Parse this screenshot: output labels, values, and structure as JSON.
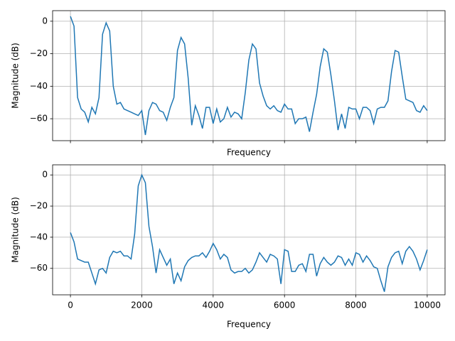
{
  "chart_data": [
    {
      "type": "line",
      "xlabel": "Frequency",
      "ylabel": "Magnitude (dB)",
      "x": [
        0,
        100,
        200,
        300,
        400,
        500,
        600,
        700,
        800,
        900,
        1000,
        1100,
        1200,
        1300,
        1400,
        1500,
        1600,
        1700,
        1800,
        1900,
        2000,
        2100,
        2200,
        2300,
        2400,
        2500,
        2600,
        2700,
        2800,
        2900,
        3000,
        3100,
        3200,
        3300,
        3400,
        3500,
        3600,
        3700,
        3800,
        3900,
        4000,
        4100,
        4200,
        4300,
        4400,
        4500,
        4600,
        4700,
        4800,
        4900,
        5000,
        5100,
        5200,
        5300,
        5400,
        5500,
        5600,
        5700,
        5800,
        5900,
        6000,
        6100,
        6200,
        6300,
        6400,
        6500,
        6600,
        6700,
        6800,
        6900,
        7000,
        7100,
        7200,
        7300,
        7400,
        7500,
        7600,
        7700,
        7800,
        7900,
        8000,
        8100,
        8200,
        8300,
        8400,
        8500,
        8600,
        8700,
        8800,
        8900,
        9000,
        9100,
        9200,
        9300,
        9400,
        9500,
        9600,
        9700,
        9800,
        9900,
        10000
      ],
      "series": [
        {
          "color": "#1f77b4",
          "values": [
            3,
            -3,
            -47,
            -54,
            -56,
            -62,
            -53,
            -57,
            -47,
            -8,
            -1,
            -6,
            -40,
            -51,
            -50,
            -54,
            -55,
            -56,
            -57,
            -58,
            -55,
            -70,
            -55,
            -50,
            -51,
            -55,
            -56,
            -61,
            -53,
            -47,
            -18,
            -10,
            -14,
            -35,
            -64,
            -52,
            -58,
            -66,
            -53,
            -53,
            -63,
            -54,
            -62,
            -60,
            -53,
            -59,
            -56,
            -57,
            -60,
            -44,
            -24,
            -14,
            -17,
            -38,
            -46,
            -52,
            -54,
            -52,
            -55,
            -56,
            -51,
            -54,
            -54,
            -63,
            -60,
            -60,
            -59,
            -68,
            -56,
            -45,
            -28,
            -17,
            -19,
            -33,
            -49,
            -67,
            -57,
            -66,
            -53,
            -54,
            -54,
            -60,
            -53,
            -53,
            -55,
            -63,
            -54,
            -53,
            -53,
            -49,
            -31,
            -18,
            -19,
            -34,
            -48,
            -49,
            -50,
            -55,
            -56,
            -52,
            -55
          ]
        }
      ],
      "xlim": [
        -500,
        10500
      ],
      "ylim": [
        -73.5,
        6.5
      ],
      "xticks": [
        0,
        2000,
        4000,
        6000,
        8000,
        10000
      ],
      "yticks": [
        0,
        {
          "value": -20,
          "label": "−20"
        },
        {
          "value": -40,
          "label": "−40"
        },
        {
          "value": -60,
          "label": "−60"
        }
      ],
      "grid": true
    },
    {
      "type": "line",
      "xlabel": "Frequency",
      "ylabel": "Magnitude (dB)",
      "x": [
        0,
        100,
        200,
        300,
        400,
        500,
        600,
        700,
        800,
        900,
        1000,
        1100,
        1200,
        1300,
        1400,
        1500,
        1600,
        1700,
        1800,
        1900,
        2000,
        2100,
        2200,
        2300,
        2400,
        2500,
        2600,
        2700,
        2800,
        2900,
        3000,
        3100,
        3200,
        3300,
        3400,
        3500,
        3600,
        3700,
        3800,
        3900,
        4000,
        4100,
        4200,
        4300,
        4400,
        4500,
        4600,
        4700,
        4800,
        4900,
        5000,
        5100,
        5200,
        5300,
        5400,
        5500,
        5600,
        5700,
        5800,
        5900,
        6000,
        6100,
        6200,
        6300,
        6400,
        6500,
        6600,
        6700,
        6800,
        6900,
        7000,
        7100,
        7200,
        7300,
        7400,
        7500,
        7600,
        7700,
        7800,
        7900,
        8000,
        8100,
        8200,
        8300,
        8400,
        8500,
        8600,
        8700,
        8800,
        8900,
        9000,
        9100,
        9200,
        9300,
        9400,
        9500,
        9600,
        9700,
        9800,
        9900,
        10000
      ],
      "series": [
        {
          "color": "#1f77b4",
          "values": [
            -37,
            -43,
            -54,
            -55,
            -56,
            -56,
            -63,
            -70,
            -61,
            -60,
            -63,
            -53,
            -49,
            -50,
            -49,
            -52,
            -52,
            -54,
            -38,
            -7,
            0,
            -5,
            -33,
            -46,
            -63,
            -48,
            -53,
            -58,
            -54,
            -70,
            -63,
            -68,
            -59,
            -55,
            -53,
            -52,
            -52,
            -50,
            -53,
            -49,
            -44,
            -48,
            -54,
            -51,
            -53,
            -61,
            -63,
            -62,
            -62,
            -60,
            -63,
            -61,
            -56,
            -50,
            -53,
            -56,
            -51,
            -52,
            -54,
            -70,
            -48,
            -49,
            -62,
            -62,
            -58,
            -57,
            -62,
            -51,
            -51,
            -65,
            -57,
            -53,
            -56,
            -58,
            -56,
            -52,
            -53,
            -58,
            -54,
            -58,
            -50,
            -51,
            -56,
            -52,
            -55,
            -59,
            -60,
            -68,
            -75,
            -59,
            -53,
            -50,
            -49,
            -57,
            -49,
            -46,
            -49,
            -54,
            -61,
            -55,
            -48
          ]
        }
      ],
      "xlim": [
        -500,
        10500
      ],
      "ylim": [
        -77,
        6.5
      ],
      "xticks": [
        0,
        2000,
        4000,
        6000,
        8000,
        10000
      ],
      "yticks": [
        0,
        {
          "value": -20,
          "label": "−20"
        },
        {
          "value": -40,
          "label": "−40"
        },
        {
          "value": -60,
          "label": "−60"
        }
      ],
      "grid": true
    }
  ]
}
